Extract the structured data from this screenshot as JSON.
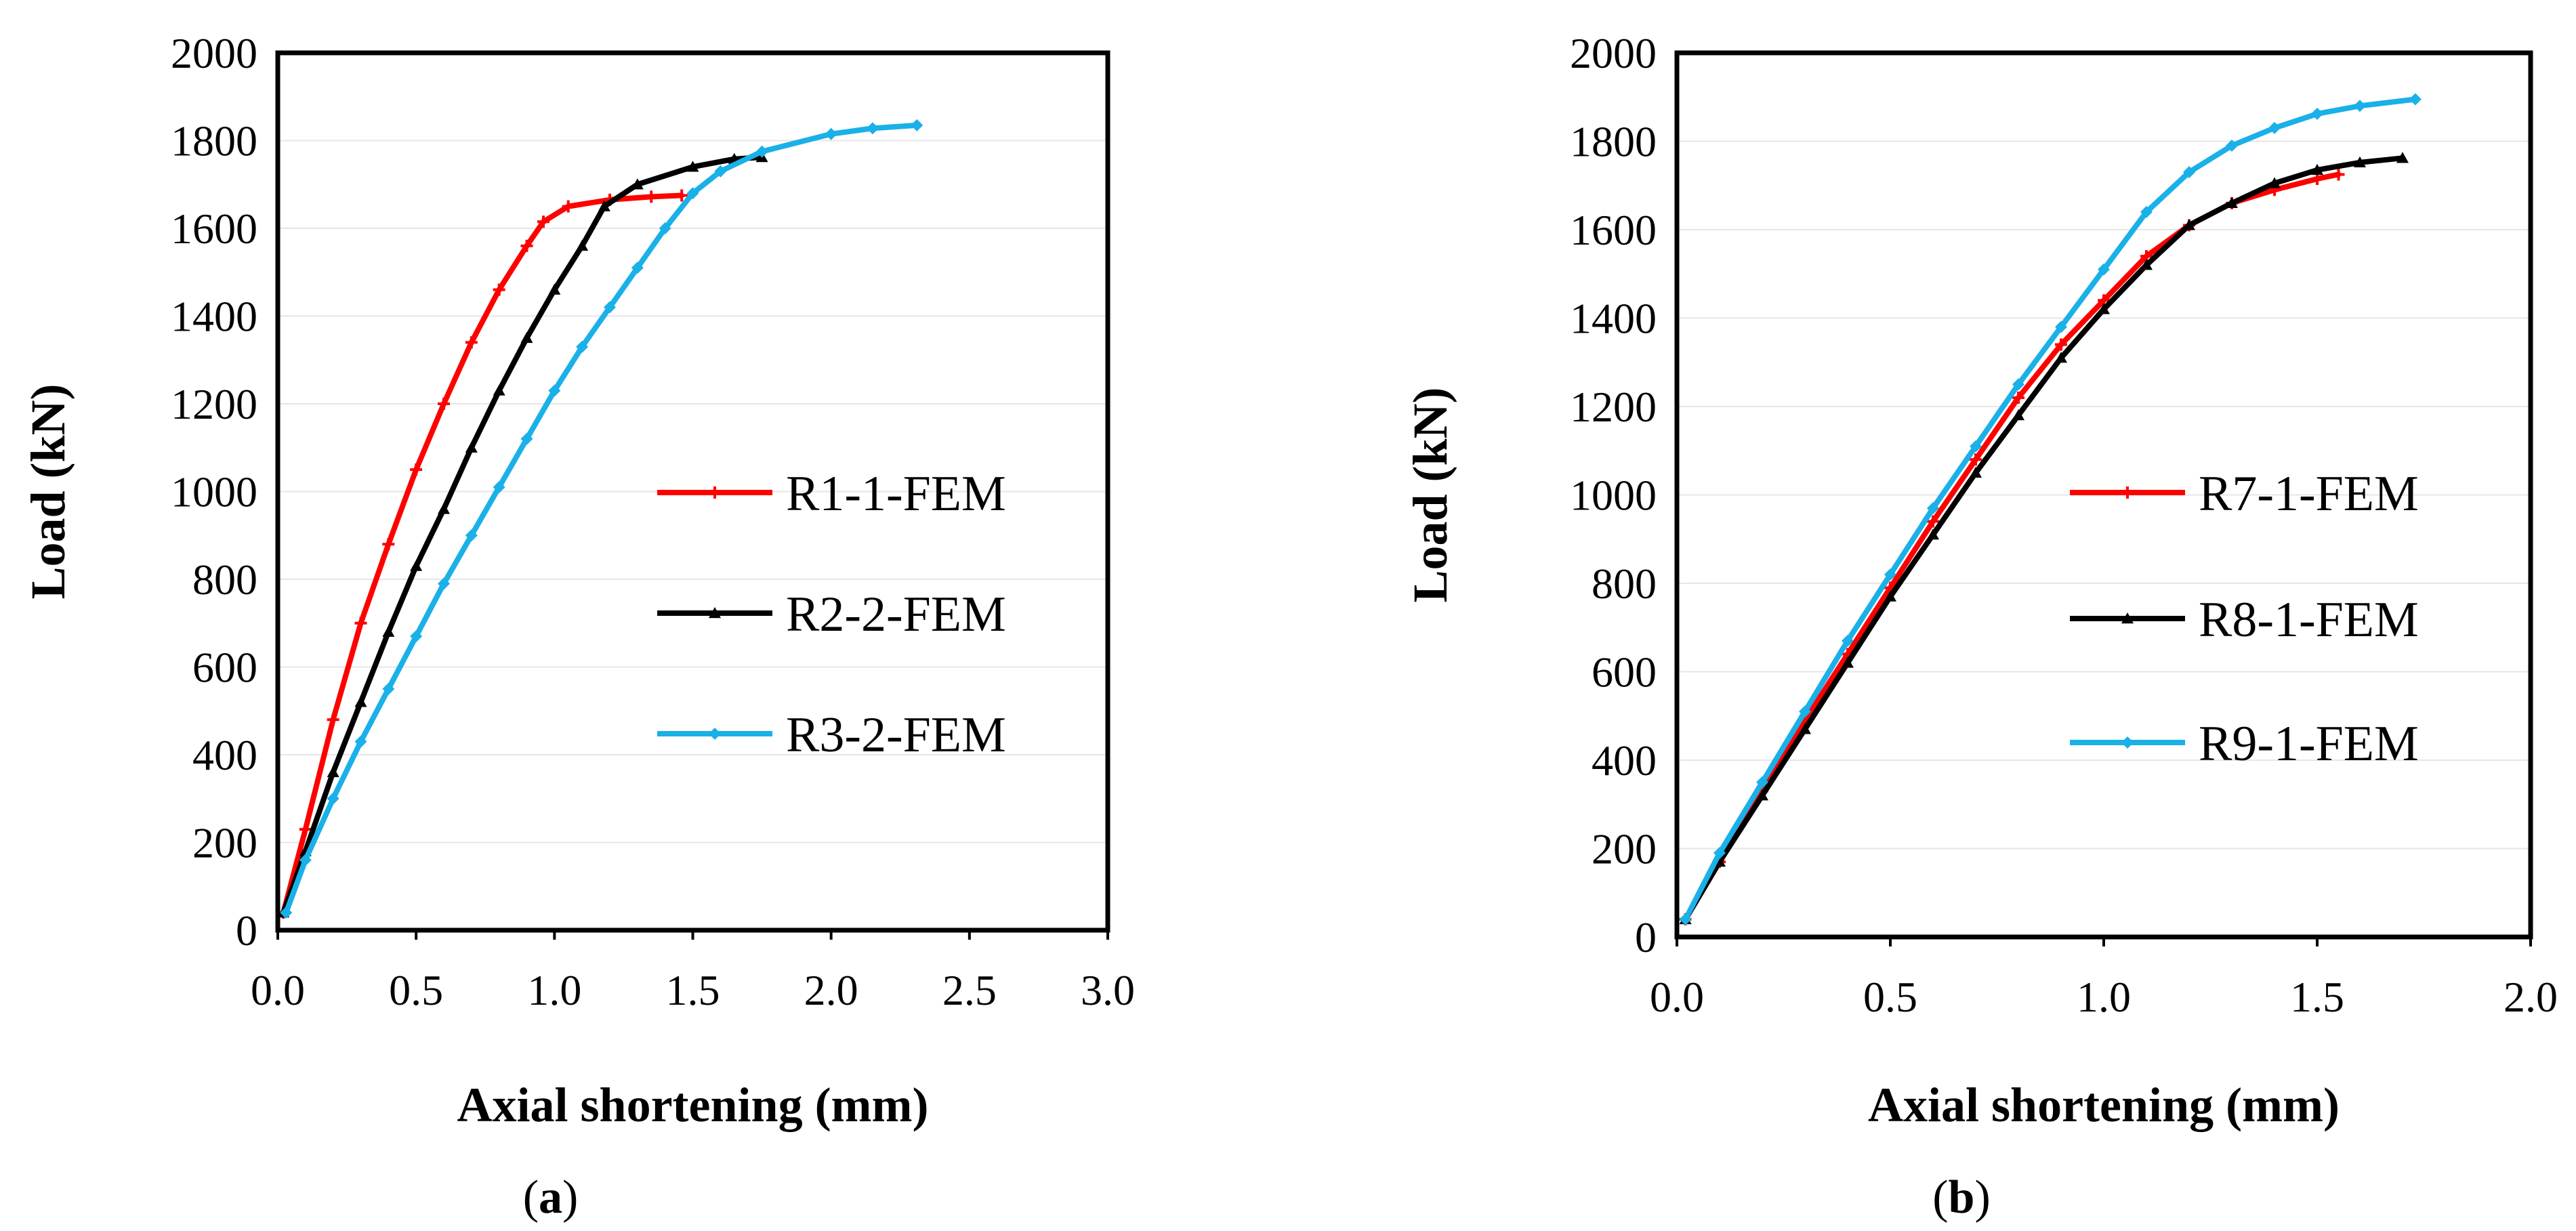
{
  "chart_data": [
    {
      "type": "line",
      "panel_label": "a",
      "xlabel": "Axial shortening (mm)",
      "ylabel": "Load (kN)",
      "xlim": [
        0,
        3.0
      ],
      "ylim": [
        0,
        2000
      ],
      "xticks": [
        "0.0",
        "0.5",
        "1.0",
        "1.5",
        "2.0",
        "2.5",
        "3.0"
      ],
      "yticks": [
        "0",
        "200",
        "400",
        "600",
        "800",
        "1000",
        "1200",
        "1400",
        "1600",
        "1800",
        "2000"
      ],
      "grid": "horizontal",
      "legend_position": "right",
      "series": [
        {
          "name": "R1-1-FEM",
          "color": "#ff0000",
          "marker": "plus",
          "points": [
            [
              0.02,
              40
            ],
            [
              0.1,
              230
            ],
            [
              0.2,
              480
            ],
            [
              0.3,
              700
            ],
            [
              0.4,
              880
            ],
            [
              0.5,
              1050
            ],
            [
              0.6,
              1200
            ],
            [
              0.7,
              1340
            ],
            [
              0.8,
              1460
            ],
            [
              0.9,
              1560
            ],
            [
              0.96,
              1615
            ],
            [
              1.05,
              1650
            ],
            [
              1.2,
              1665
            ],
            [
              1.35,
              1672
            ],
            [
              1.46,
              1675
            ]
          ]
        },
        {
          "name": "R2-2-FEM",
          "color": "#000000",
          "marker": "triangle",
          "points": [
            [
              0.02,
              40
            ],
            [
              0.1,
              180
            ],
            [
              0.2,
              360
            ],
            [
              0.3,
              520
            ],
            [
              0.4,
              680
            ],
            [
              0.5,
              830
            ],
            [
              0.6,
              960
            ],
            [
              0.7,
              1100
            ],
            [
              0.8,
              1230
            ],
            [
              0.9,
              1350
            ],
            [
              1.0,
              1460
            ],
            [
              1.1,
              1560
            ],
            [
              1.18,
              1650
            ],
            [
              1.3,
              1700
            ],
            [
              1.5,
              1740
            ],
            [
              1.65,
              1758
            ],
            [
              1.75,
              1762
            ]
          ]
        },
        {
          "name": "R3-2-FEM",
          "color": "#1ab0e8",
          "marker": "diamond",
          "points": [
            [
              0.03,
              40
            ],
            [
              0.1,
              160
            ],
            [
              0.2,
              300
            ],
            [
              0.3,
              430
            ],
            [
              0.4,
              550
            ],
            [
              0.5,
              670
            ],
            [
              0.6,
              790
            ],
            [
              0.7,
              900
            ],
            [
              0.8,
              1010
            ],
            [
              0.9,
              1120
            ],
            [
              1.0,
              1230
            ],
            [
              1.1,
              1330
            ],
            [
              1.2,
              1420
            ],
            [
              1.3,
              1510
            ],
            [
              1.4,
              1600
            ],
            [
              1.5,
              1680
            ],
            [
              1.6,
              1730
            ],
            [
              1.75,
              1775
            ],
            [
              2.0,
              1815
            ],
            [
              2.15,
              1828
            ],
            [
              2.31,
              1835
            ]
          ]
        }
      ]
    },
    {
      "type": "line",
      "panel_label": "b",
      "xlabel": "Axial shortening (mm)",
      "ylabel": "Load (kN)",
      "xlim": [
        0,
        2.0
      ],
      "ylim": [
        0,
        2000
      ],
      "xticks": [
        "0.0",
        "0.5",
        "1.0",
        "1.5",
        "2.0"
      ],
      "yticks": [
        "0",
        "200",
        "400",
        "600",
        "800",
        "1000",
        "1200",
        "1400",
        "1600",
        "1800",
        "2000"
      ],
      "grid": "horizontal",
      "legend_position": "right",
      "series": [
        {
          "name": "R7-1-FEM",
          "color": "#ff0000",
          "marker": "plus",
          "points": [
            [
              0.02,
              40
            ],
            [
              0.1,
              170
            ],
            [
              0.2,
              330
            ],
            [
              0.3,
              490
            ],
            [
              0.4,
              640
            ],
            [
              0.5,
              790
            ],
            [
              0.6,
              940
            ],
            [
              0.7,
              1080
            ],
            [
              0.8,
              1220
            ],
            [
              0.9,
              1340
            ],
            [
              1.0,
              1440
            ],
            [
              1.1,
              1540
            ],
            [
              1.2,
              1610
            ],
            [
              1.3,
              1660
            ],
            [
              1.4,
              1690
            ],
            [
              1.5,
              1715
            ],
            [
              1.55,
              1725
            ]
          ]
        },
        {
          "name": "R8-1-FEM",
          "color": "#000000",
          "marker": "triangle",
          "points": [
            [
              0.02,
              40
            ],
            [
              0.1,
              170
            ],
            [
              0.2,
              320
            ],
            [
              0.3,
              470
            ],
            [
              0.4,
              620
            ],
            [
              0.5,
              770
            ],
            [
              0.6,
              910
            ],
            [
              0.7,
              1050
            ],
            [
              0.8,
              1180
            ],
            [
              0.9,
              1310
            ],
            [
              1.0,
              1420
            ],
            [
              1.1,
              1520
            ],
            [
              1.2,
              1610
            ],
            [
              1.3,
              1660
            ],
            [
              1.4,
              1705
            ],
            [
              1.5,
              1735
            ],
            [
              1.6,
              1752
            ],
            [
              1.7,
              1762
            ]
          ]
        },
        {
          "name": "R9-1-FEM",
          "color": "#1ab0e8",
          "marker": "diamond",
          "points": [
            [
              0.02,
              40
            ],
            [
              0.1,
              190
            ],
            [
              0.2,
              350
            ],
            [
              0.3,
              510
            ],
            [
              0.4,
              670
            ],
            [
              0.5,
              820
            ],
            [
              0.6,
              970
            ],
            [
              0.7,
              1110
            ],
            [
              0.8,
              1250
            ],
            [
              0.9,
              1380
            ],
            [
              1.0,
              1510
            ],
            [
              1.1,
              1640
            ],
            [
              1.2,
              1730
            ],
            [
              1.3,
              1790
            ],
            [
              1.4,
              1830
            ],
            [
              1.5,
              1862
            ],
            [
              1.6,
              1880
            ],
            [
              1.73,
              1895
            ]
          ]
        }
      ]
    }
  ]
}
